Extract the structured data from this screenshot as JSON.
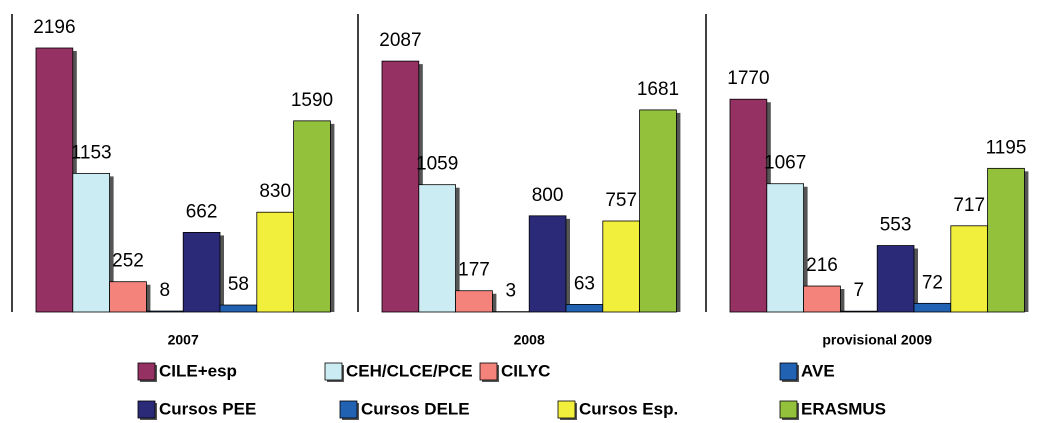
{
  "chart_data": {
    "type": "bar",
    "categories": [
      "2007",
      "2008",
      "provisional 2009"
    ],
    "series": [
      {
        "name": "CILE+esp",
        "color": "#953163",
        "values": [
          2196,
          2087,
          1770
        ]
      },
      {
        "name": "CEH/CLCE/PCE",
        "color": "#CCECF4",
        "values": [
          1153,
          1059,
          1067
        ]
      },
      {
        "name": "CILYC",
        "color": "#F4837C",
        "values": [
          252,
          177,
          216
        ]
      },
      {
        "name": "AVE",
        "color": "#2162B3",
        "values": [
          8,
          3,
          7
        ]
      },
      {
        "name": "Cursos PEE",
        "color": "#2A2A78",
        "values": [
          662,
          800,
          553
        ]
      },
      {
        "name": "Cursos DELE",
        "color": "#2162B3",
        "values": [
          58,
          63,
          72
        ]
      },
      {
        "name": "Cursos Esp.",
        "color": "#F2EE3C",
        "values": [
          830,
          757,
          717
        ]
      },
      {
        "name": "ERASMUS",
        "color": "#93C13C",
        "values": [
          1590,
          1681,
          1195
        ]
      }
    ]
  }
}
